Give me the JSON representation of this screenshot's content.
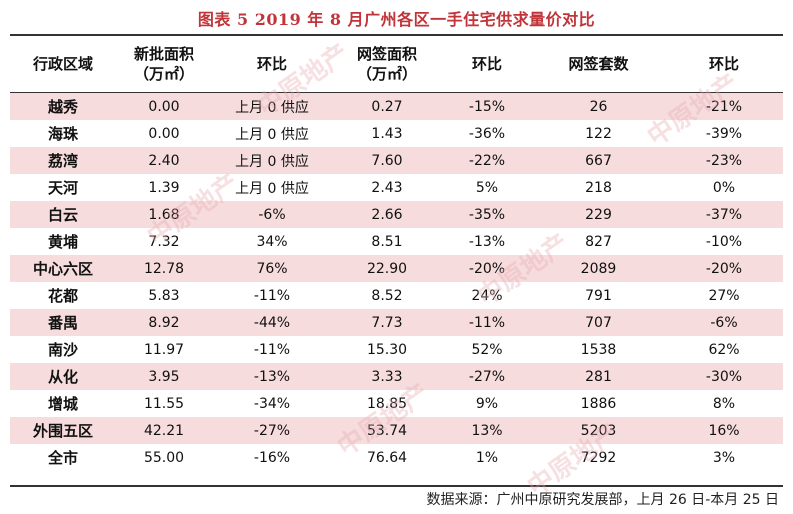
{
  "title": "图表 5   2019 年 8 月广州各区一手住宅供求量价对比",
  "headers": {
    "district": "行政区域",
    "new_area_line1": "新批面积",
    "new_area_line2": "（万㎡）",
    "new_change": "环比",
    "signed_area_line1": "网签面积",
    "signed_area_line2": "（万㎡）",
    "signed_change": "环比",
    "signed_units": "网签套数",
    "units_change": "环比"
  },
  "rows": [
    {
      "district": "越秀",
      "new_area": "0.00",
      "new_change": "上月 0 供应",
      "signed_area": "0.27",
      "signed_change": "-15%",
      "units": "26",
      "units_change": "-21%"
    },
    {
      "district": "海珠",
      "new_area": "0.00",
      "new_change": "上月 0 供应",
      "signed_area": "1.43",
      "signed_change": "-36%",
      "units": "122",
      "units_change": "-39%"
    },
    {
      "district": "荔湾",
      "new_area": "2.40",
      "new_change": "上月 0 供应",
      "signed_area": "7.60",
      "signed_change": "-22%",
      "units": "667",
      "units_change": "-23%"
    },
    {
      "district": "天河",
      "new_area": "1.39",
      "new_change": "上月 0 供应",
      "signed_area": "2.43",
      "signed_change": "5%",
      "units": "218",
      "units_change": "0%"
    },
    {
      "district": "白云",
      "new_area": "1.68",
      "new_change": "-6%",
      "signed_area": "2.66",
      "signed_change": "-35%",
      "units": "229",
      "units_change": "-37%"
    },
    {
      "district": "黄埔",
      "new_area": "7.32",
      "new_change": "34%",
      "signed_area": "8.51",
      "signed_change": "-13%",
      "units": "827",
      "units_change": "-10%"
    },
    {
      "district": "中心六区",
      "new_area": "12.78",
      "new_change": "76%",
      "signed_area": "22.90",
      "signed_change": "-20%",
      "units": "2089",
      "units_change": "-20%"
    },
    {
      "district": "花都",
      "new_area": "5.83",
      "new_change": "-11%",
      "signed_area": "8.52",
      "signed_change": "24%",
      "units": "791",
      "units_change": "27%"
    },
    {
      "district": "番禺",
      "new_area": "8.92",
      "new_change": "-44%",
      "signed_area": "7.73",
      "signed_change": "-11%",
      "units": "707",
      "units_change": "-6%"
    },
    {
      "district": "南沙",
      "new_area": "11.97",
      "new_change": "-11%",
      "signed_area": "15.30",
      "signed_change": "52%",
      "units": "1538",
      "units_change": "62%"
    },
    {
      "district": "从化",
      "new_area": "3.95",
      "new_change": "-13%",
      "signed_area": "3.33",
      "signed_change": "-27%",
      "units": "281",
      "units_change": "-30%"
    },
    {
      "district": "增城",
      "new_area": "11.55",
      "new_change": "-34%",
      "signed_area": "18.85",
      "signed_change": "9%",
      "units": "1886",
      "units_change": "8%"
    },
    {
      "district": "外围五区",
      "new_area": "42.21",
      "new_change": "-27%",
      "signed_area": "53.74",
      "signed_change": "13%",
      "units": "5203",
      "units_change": "16%"
    },
    {
      "district": "全市",
      "new_area": "55.00",
      "new_change": "-16%",
      "signed_area": "76.64",
      "signed_change": "1%",
      "units": "7292",
      "units_change": "3%"
    }
  ],
  "source": "数据来源：广州中原研究发展部，上月 26 日-本月 25 日",
  "watermark_text": "中原地产",
  "colors": {
    "title": "#c0343a",
    "band": "#f6dcdd",
    "watermark": "#e7a9ad"
  }
}
